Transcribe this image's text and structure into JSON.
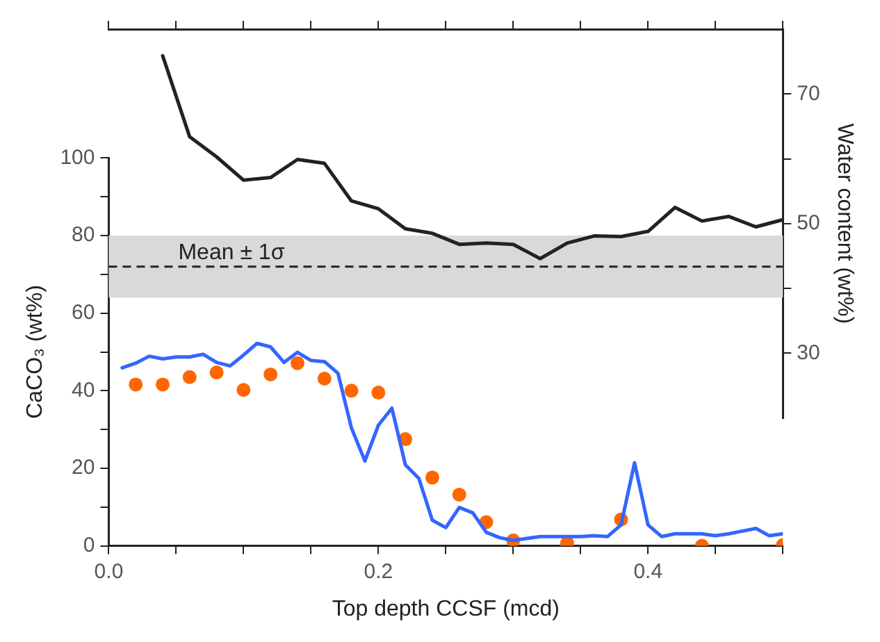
{
  "chart_data": {
    "type": "line",
    "xlabel": "Top depth CCSF (mcd)",
    "ylabel": "CaCO₃ (wt%)",
    "y2label": "Water content (wt%)",
    "xlim": [
      0,
      0.5
    ],
    "xticks": [
      {
        "value": 0,
        "label": "0.0"
      },
      {
        "value": 0.05,
        "label": null
      },
      {
        "value": 0.1,
        "label": null
      },
      {
        "value": 0.15,
        "label": null
      },
      {
        "value": 0.2,
        "label": "0.2"
      },
      {
        "value": 0.25,
        "label": null
      },
      {
        "value": 0.3,
        "label": null
      },
      {
        "value": 0.35,
        "label": null
      },
      {
        "value": 0.4,
        "label": "0.4"
      },
      {
        "value": 0.45,
        "label": null
      },
      {
        "value": 0.5,
        "label": null
      }
    ],
    "ylim": [
      0,
      100
    ],
    "yticks": [
      0,
      {
        "value": 10,
        "label": null
      },
      20,
      {
        "value": 30,
        "label": null
      },
      40,
      {
        "value": 50,
        "label": null
      },
      60,
      {
        "value": 70,
        "label": null
      },
      80,
      {
        "value": 90,
        "label": null
      },
      100
    ],
    "y2lim": [
      20,
      80
    ],
    "y2ticks": [
      30,
      {
        "value": 40,
        "label": null
      },
      50,
      {
        "value": 60,
        "label": null
      },
      70
    ],
    "grid": false,
    "legend": false,
    "line_style": "solid",
    "bands": [
      {
        "axis": "y",
        "from": 64,
        "to": 80,
        "color": "#d9d9d9"
      }
    ],
    "ref_lines": [
      {
        "axis": "y",
        "value": 72,
        "label": "Mean ± 1σ",
        "color": "#222222",
        "line_style": "dashed"
      }
    ],
    "series": [
      {
        "color": "#3366ff",
        "marker": "none",
        "x": [
          0.01,
          0.02,
          0.03,
          0.04,
          0.05,
          0.06,
          0.07,
          0.08,
          0.09,
          0.1,
          0.11,
          0.12,
          0.13,
          0.14,
          0.15,
          0.16,
          0.17,
          0.18,
          0.19,
          0.2,
          0.21,
          0.22,
          0.23,
          0.24,
          0.25,
          0.26,
          0.27,
          0.28,
          0.29,
          0.3,
          0.31,
          0.32,
          0.33,
          0.35,
          0.36,
          0.37,
          0.38,
          0.39,
          0.4,
          0.41,
          0.42,
          0.44,
          0.45,
          0.46,
          0.47,
          0.48,
          0.49,
          0.5
        ],
        "values": [
          45.9,
          47.1,
          48.9,
          48.2,
          48.7,
          48.7,
          49.4,
          47.3,
          46.4,
          49.2,
          52.2,
          51.3,
          47.3,
          49.9,
          47.8,
          47.5,
          44.5,
          30.4,
          21.9,
          31.1,
          35.5,
          20.9,
          17.4,
          6.6,
          4.7,
          9.9,
          8.5,
          3.5,
          2.1,
          1.4,
          1.9,
          2.4,
          2.4,
          2.4,
          2.6,
          2.4,
          5.4,
          21.4,
          5.4,
          2.4,
          3.1,
          3.1,
          2.6,
          3.1,
          3.8,
          4.5,
          2.6,
          3.1
        ]
      },
      {
        "type": "scatter",
        "color": "#ff6600",
        "marker": "circle",
        "x": [
          0.02,
          0.04,
          0.06,
          0.08,
          0.1,
          0.12,
          0.14,
          0.16,
          0.18,
          0.2,
          0.22,
          0.24,
          0.26,
          0.28,
          0.3,
          0.34,
          0.38,
          0.44,
          0.5
        ],
        "values": [
          41.6,
          41.6,
          43.5,
          44.7,
          40.2,
          44.2,
          47.1,
          43.1,
          40.0,
          39.5,
          27.5,
          17.6,
          13.2,
          6.1,
          1.4,
          0.7,
          6.8,
          0.0,
          0.2
        ]
      },
      {
        "axis": "y2",
        "color": "#222222",
        "marker": "none",
        "x": [
          0.04,
          0.06,
          0.08,
          0.1,
          0.12,
          0.14,
          0.16,
          0.18,
          0.2,
          0.22,
          0.24,
          0.26,
          0.28,
          0.3,
          0.32,
          0.34,
          0.36,
          0.38,
          0.4,
          0.42,
          0.44,
          0.46,
          0.48,
          0.5
        ],
        "values": [
          75.9,
          63.4,
          60.3,
          56.7,
          57.1,
          59.9,
          59.3,
          53.5,
          52.3,
          49.2,
          48.5,
          46.8,
          47.0,
          46.8,
          44.6,
          47.0,
          48.1,
          48.0,
          48.8,
          52.5,
          50.4,
          51.1,
          49.5,
          50.6
        ]
      }
    ]
  }
}
